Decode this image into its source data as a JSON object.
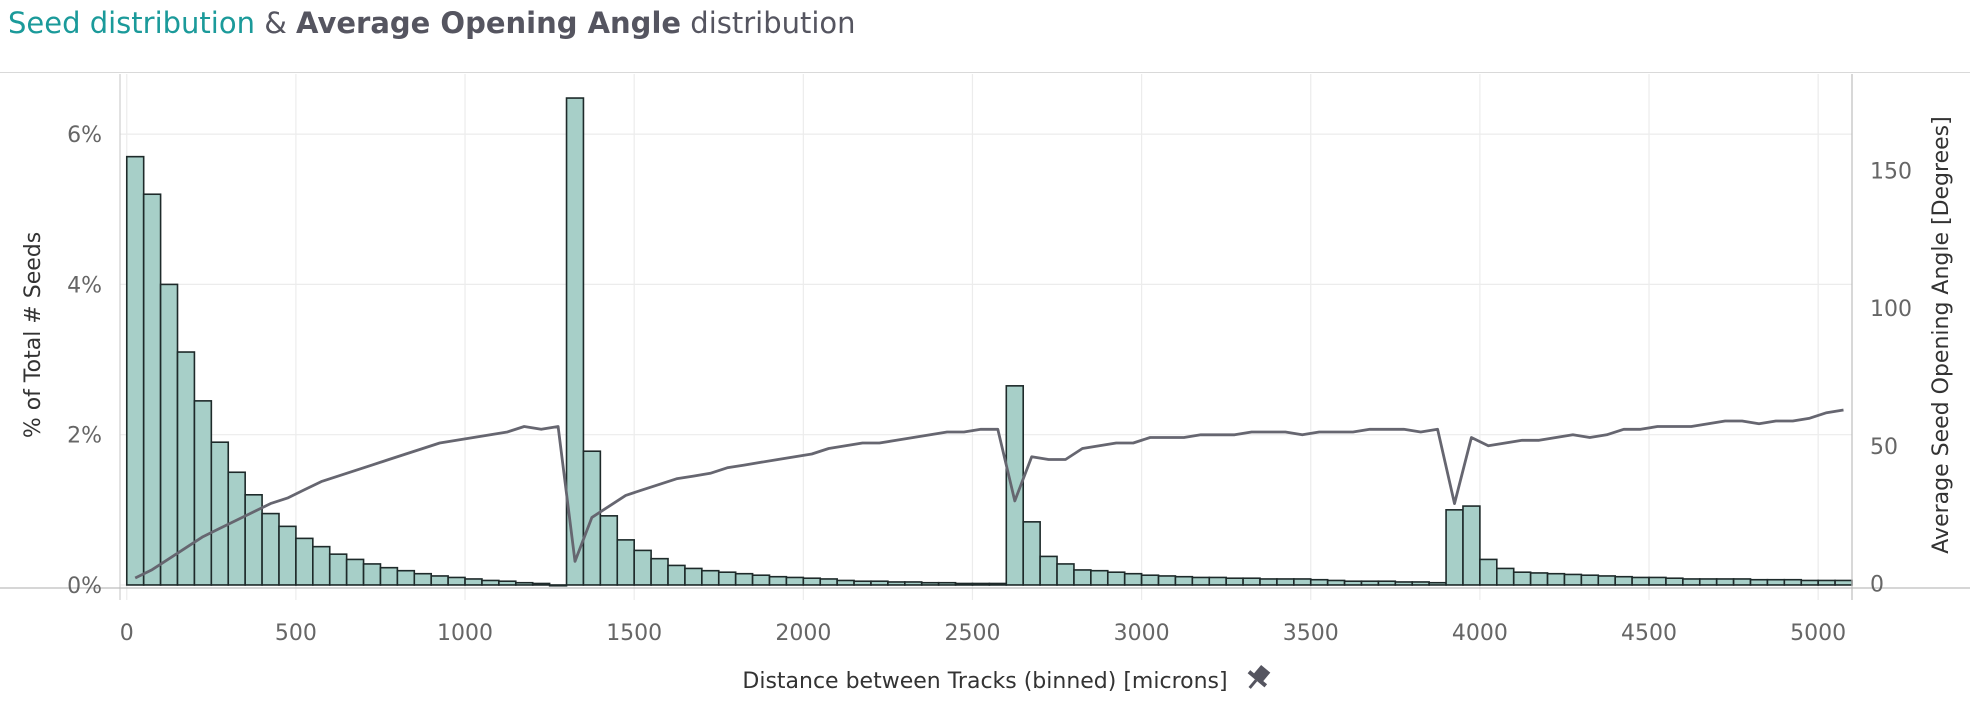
{
  "title": {
    "part1": "Seed distribution",
    "part2": " & ",
    "part3": "Average Opening Angle",
    "part4": " distribution"
  },
  "colors": {
    "bar_fill": "#a7cfc8",
    "bar_stroke": "#1e2a2a",
    "line": "#666670",
    "title_accent": "#1b9a9a",
    "title_text": "#555560"
  },
  "icons": {
    "pin": "pin-icon"
  },
  "chart_data": {
    "type": "bar+line",
    "xlabel": "Distance between Tracks (binned) [microns]",
    "ylabel": "% of Total # Seeds",
    "y2label": "Average Seed Opening Angle [Degrees]",
    "xlim": [
      -20,
      5100
    ],
    "ylim": [
      -0.2,
      6.8
    ],
    "y2lim": [
      -6,
      185
    ],
    "bin_width": 50,
    "x_ticks": [
      0,
      500,
      1000,
      1500,
      2000,
      2500,
      3000,
      3500,
      4000,
      4500,
      5000
    ],
    "y_ticks": [
      "0%",
      "2%",
      "4%",
      "6%"
    ],
    "y_tick_values": [
      0,
      2,
      4,
      6
    ],
    "y2_ticks": [
      0,
      50,
      100,
      150
    ],
    "grid": true,
    "bars": {
      "name": "% of Total # Seeds",
      "x": [
        0,
        50,
        100,
        150,
        200,
        250,
        300,
        350,
        400,
        450,
        500,
        550,
        600,
        650,
        700,
        750,
        800,
        850,
        900,
        950,
        1000,
        1050,
        1100,
        1150,
        1200,
        1250,
        1300,
        1350,
        1400,
        1450,
        1500,
        1550,
        1600,
        1650,
        1700,
        1750,
        1800,
        1850,
        1900,
        1950,
        2000,
        2050,
        2100,
        2150,
        2200,
        2250,
        2300,
        2350,
        2400,
        2450,
        2500,
        2550,
        2600,
        2650,
        2700,
        2750,
        2800,
        2850,
        2900,
        2950,
        3000,
        3050,
        3100,
        3150,
        3200,
        3250,
        3300,
        3350,
        3400,
        3450,
        3500,
        3550,
        3600,
        3650,
        3700,
        3750,
        3800,
        3850,
        3900,
        3950,
        4000,
        4050,
        4100,
        4150,
        4200,
        4250,
        4300,
        4350,
        4400,
        4450,
        4500,
        4550,
        4600,
        4650,
        4700,
        4750,
        4800,
        4850,
        4900,
        4950,
        5000,
        5050
      ],
      "values": [
        5.7,
        5.2,
        4.0,
        3.1,
        2.45,
        1.9,
        1.5,
        1.2,
        0.95,
        0.78,
        0.62,
        0.51,
        0.41,
        0.34,
        0.28,
        0.23,
        0.19,
        0.15,
        0.12,
        0.1,
        0.08,
        0.06,
        0.05,
        0.03,
        0.02,
        0.0,
        6.48,
        1.78,
        0.92,
        0.6,
        0.46,
        0.35,
        0.26,
        0.22,
        0.19,
        0.17,
        0.15,
        0.13,
        0.11,
        0.1,
        0.09,
        0.08,
        0.06,
        0.05,
        0.05,
        0.04,
        0.04,
        0.03,
        0.03,
        0.02,
        0.02,
        0.02,
        2.65,
        0.84,
        0.38,
        0.28,
        0.2,
        0.19,
        0.17,
        0.15,
        0.13,
        0.12,
        0.11,
        0.1,
        0.1,
        0.09,
        0.09,
        0.08,
        0.08,
        0.08,
        0.07,
        0.06,
        0.05,
        0.05,
        0.05,
        0.04,
        0.04,
        0.03,
        1.0,
        1.05,
        0.34,
        0.22,
        0.17,
        0.16,
        0.15,
        0.14,
        0.13,
        0.12,
        0.11,
        0.1,
        0.1,
        0.09,
        0.08,
        0.08,
        0.08,
        0.08,
        0.07,
        0.07,
        0.07,
        0.06,
        0.06,
        0.06
      ]
    },
    "line": {
      "name": "Average Seed Opening Angle [Degrees]",
      "x": [
        0,
        50,
        100,
        150,
        200,
        250,
        300,
        350,
        400,
        450,
        500,
        550,
        600,
        650,
        700,
        750,
        800,
        850,
        900,
        950,
        1000,
        1050,
        1100,
        1150,
        1200,
        1250,
        1300,
        1350,
        1400,
        1450,
        1500,
        1550,
        1600,
        1650,
        1700,
        1750,
        1800,
        1850,
        1900,
        1950,
        2000,
        2050,
        2100,
        2150,
        2200,
        2250,
        2300,
        2350,
        2400,
        2450,
        2500,
        2550,
        2600,
        2650,
        2700,
        2750,
        2800,
        2850,
        2900,
        2950,
        3000,
        3050,
        3100,
        3150,
        3200,
        3250,
        3300,
        3350,
        3400,
        3450,
        3500,
        3550,
        3600,
        3650,
        3700,
        3750,
        3800,
        3850,
        3900,
        3950,
        4000,
        4050,
        4100,
        4150,
        4200,
        4250,
        4300,
        4350,
        4400,
        4450,
        4500,
        4550,
        4600,
        4650,
        4700,
        4750,
        4800,
        4850,
        4900,
        4950,
        5000,
        5050
      ],
      "values": [
        2,
        5,
        9,
        13,
        17,
        20,
        23,
        26,
        29,
        31,
        34,
        37,
        39,
        41,
        43,
        45,
        47,
        49,
        51,
        52,
        53,
        54,
        55,
        57,
        56,
        57,
        8,
        24,
        28,
        32,
        34,
        36,
        38,
        39,
        40,
        42,
        43,
        44,
        45,
        46,
        47,
        49,
        50,
        51,
        51,
        52,
        53,
        54,
        55,
        55,
        56,
        56,
        30,
        46,
        45,
        45,
        49,
        50,
        51,
        51,
        53,
        53,
        53,
        54,
        54,
        54,
        55,
        55,
        55,
        54,
        55,
        55,
        55,
        56,
        56,
        56,
        55,
        56,
        29,
        53,
        50,
        51,
        52,
        52,
        53,
        54,
        53,
        54,
        56,
        56,
        57,
        57,
        57,
        58,
        59,
        59,
        58,
        59,
        59,
        60,
        62,
        63
      ]
    }
  }
}
